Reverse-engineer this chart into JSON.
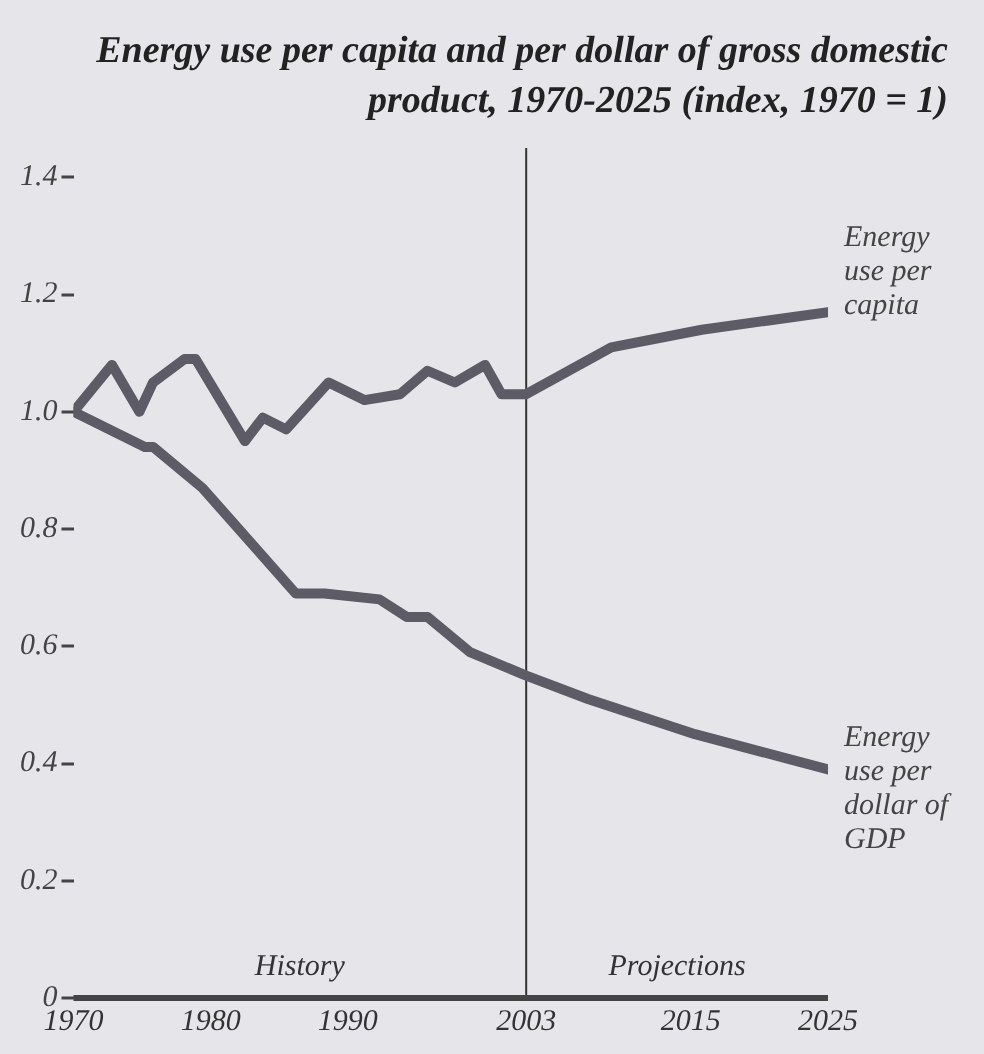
{
  "chart_data": {
    "type": "line",
    "title": "Energy use per capita and per dollar of gross domestic product, 1970-2025 (index, 1970 = 1)",
    "xlim": [
      1970,
      2025
    ],
    "xticks": [
      1970,
      1980,
      1990,
      2003,
      2015,
      2025
    ],
    "ylim": [
      0,
      1.45
    ],
    "yticks": [
      0,
      0.2,
      0.4,
      0.6,
      0.8,
      {
        "value": 1,
        "label": "1.0"
      },
      1.2,
      1.4
    ],
    "grid": false,
    "legend": false,
    "marker": "none",
    "line_style": "solid",
    "ref_lines": [
      {
        "axis": "x",
        "value": 2003,
        "color": "#333333"
      }
    ],
    "annotations": [
      "History",
      "Projections"
    ],
    "series": [
      {
        "name": "Energy use per capita",
        "color": "#5c5b66",
        "x": [
          1970,
          1972.8,
          1974.8,
          1975.8,
          1978.1,
          1978.9,
          1982.5,
          1983.8,
          1985.5,
          1988.6,
          1991.2,
          1993.8,
          1995.8,
          1997.8,
          2000,
          2001.2,
          2003,
          2009.2,
          2015.8,
          2025
        ],
        "values": [
          1.0,
          1.08,
          1.0,
          1.05,
          1.09,
          1.09,
          0.95,
          0.99,
          0.97,
          1.05,
          1.02,
          1.03,
          1.07,
          1.05,
          1.08,
          1.03,
          1.03,
          1.11,
          1.14,
          1.17
        ]
      },
      {
        "name": "Energy use per dollar of GDP",
        "color": "#5c5b66",
        "x": [
          1970,
          1975.2,
          1975.8,
          1979.4,
          1986.2,
          1988.3,
          1992.3,
          1994.3,
          1995.8,
          1998.9,
          2003,
          2007.5,
          2015.3,
          2025
        ],
        "values": [
          1.0,
          0.94,
          0.94,
          0.87,
          0.69,
          0.69,
          0.68,
          0.65,
          0.65,
          0.59,
          0.55,
          0.51,
          0.45,
          0.39
        ]
      }
    ]
  }
}
